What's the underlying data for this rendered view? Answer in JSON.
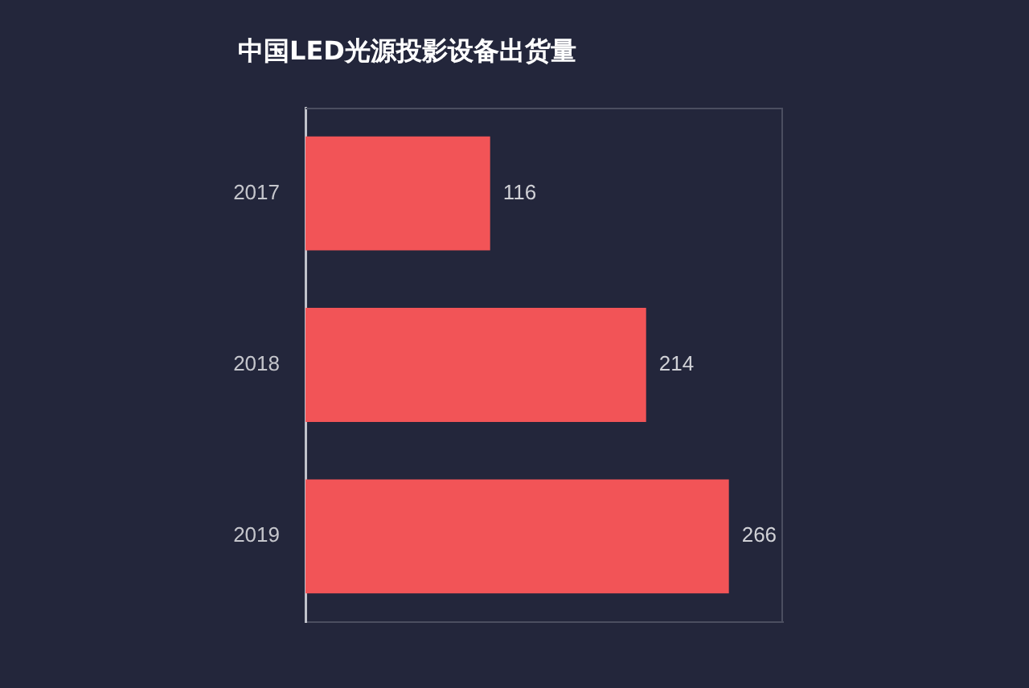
{
  "chart_data": {
    "type": "bar",
    "title": "中国LED光源投影设备出货量",
    "categories": [
      "2017",
      "2018",
      "2019"
    ],
    "values": [
      116,
      214,
      266
    ],
    "color": "#f25457",
    "orientation": "horizontal",
    "xlim": [
      0,
      300
    ],
    "data_labels": true,
    "tick_labels": "y"
  }
}
